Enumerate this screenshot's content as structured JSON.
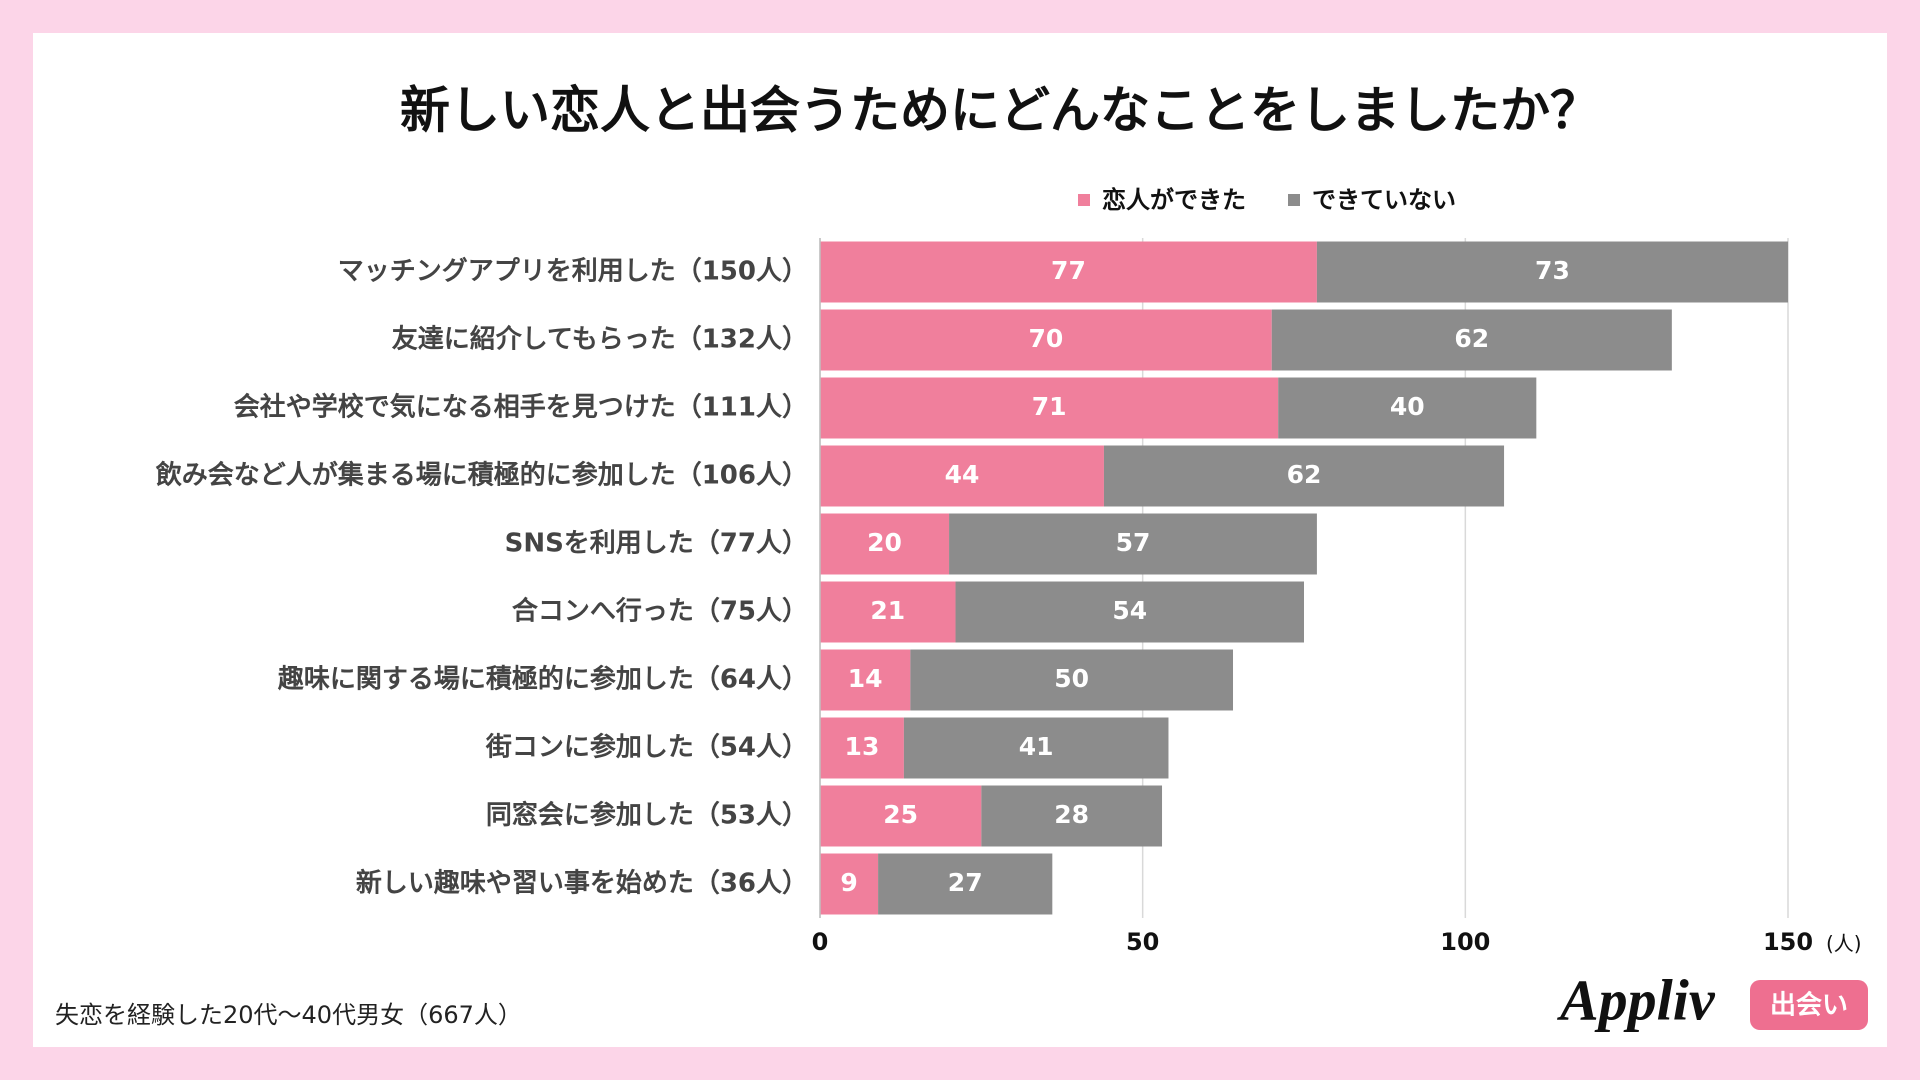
{
  "chart_data": {
    "type": "bar",
    "orientation": "horizontal",
    "stacked": true,
    "title": "新しい恋人と出会うためにどんなことをしましたか？",
    "categories": [
      "マッチングアプリを利用した（150人）",
      "友達に紹介してもらった（132人）",
      "会社や学校で気になる相手を見つけた（111人）",
      "飲み会など人が集まる場に積極的に参加した（106人）",
      "SNSを利用した（77人）",
      "合コンへ行った（75人）",
      "趣味に関する場に積極的に参加した（64人）",
      "街コンに参加した（54人）",
      "同窓会に参加した（53人）",
      "新しい趣味や習い事を始めた（36人）"
    ],
    "series": [
      {
        "name": "恋人ができた",
        "color": "#f07f9c",
        "values": [
          77,
          70,
          71,
          44,
          20,
          21,
          14,
          13,
          25,
          9
        ]
      },
      {
        "name": "できていない",
        "color": "#8c8c8c",
        "values": [
          73,
          62,
          40,
          62,
          57,
          54,
          50,
          41,
          28,
          27
        ]
      }
    ],
    "xlim": [
      0,
      150
    ],
    "xticks": [
      0,
      50,
      100,
      150
    ],
    "x_unit": "(人)",
    "grid": true,
    "legend": "top-right",
    "note": "失恋を経験した20代〜40代男女（667人）"
  },
  "logo": {
    "text": "Appliv",
    "badge": "出会い"
  }
}
